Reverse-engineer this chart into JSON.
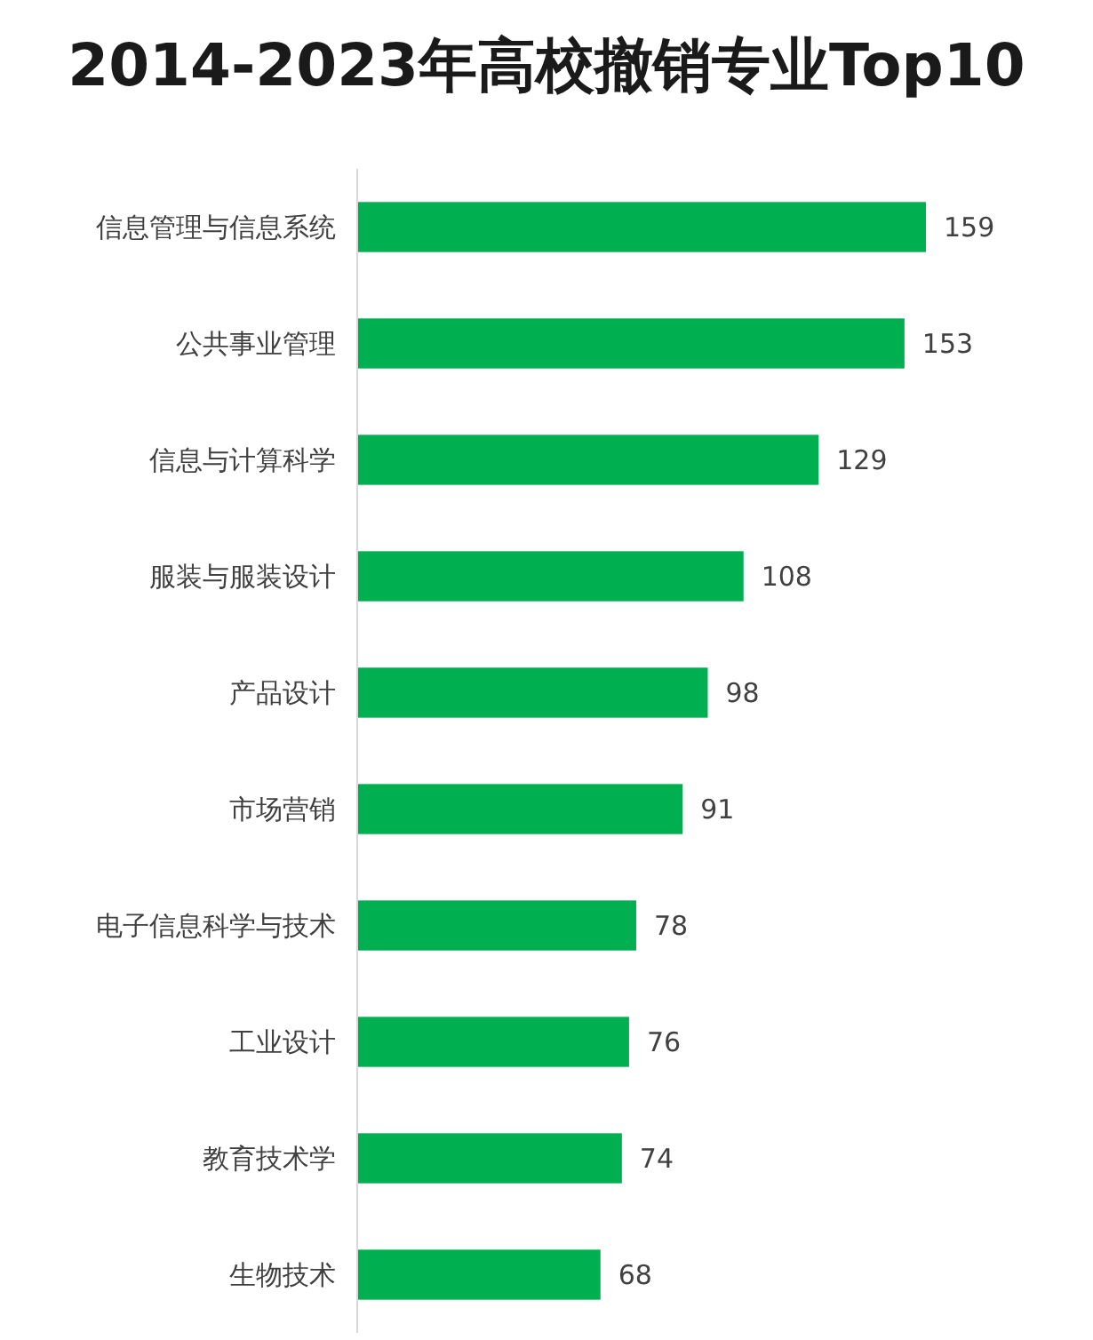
{
  "chart_data": {
    "type": "bar",
    "orientation": "horizontal",
    "title": "2014-2023年高校撤销专业Top10",
    "categories": [
      "信息管理与信息系统",
      "公共事业管理",
      "信息与计算科学",
      "服装与服装设计",
      "产品设计",
      "市场营销",
      "电子信息科学与技术",
      "工业设计",
      "教育技术学",
      "生物技术"
    ],
    "values": [
      159,
      153,
      129,
      108,
      98,
      91,
      78,
      76,
      74,
      68
    ],
    "color": "#00b050",
    "data_labels": true
  }
}
